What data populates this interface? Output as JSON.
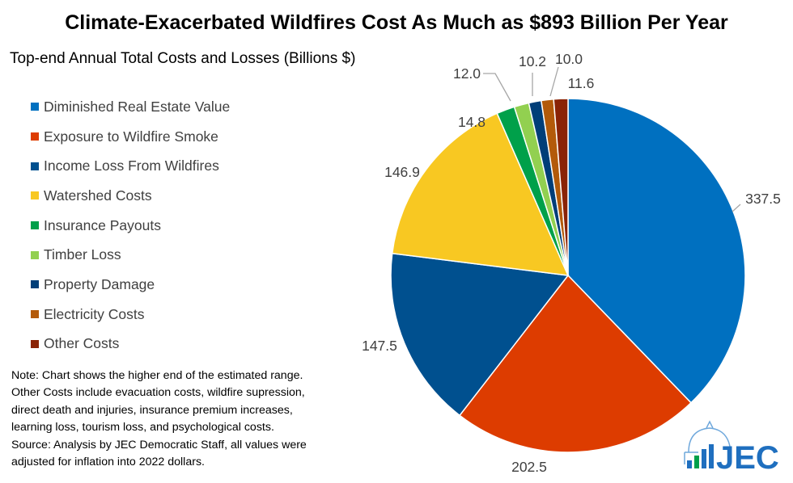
{
  "chart_data": {
    "type": "pie",
    "title": "Climate-Exacerbated Wildfires Cost As Much as $893 Billion Per Year",
    "subtitle": "Top-end Annual Total Costs and Losses (Billions $)",
    "legend_position": "left",
    "start": "12 o'clock, clockwise",
    "categories": [
      "Diminished Real Estate Value",
      "Exposure to Wildfire Smoke",
      "Income Loss From Wildfires",
      "Watershed Costs",
      "Insurance Payouts",
      "Timber Loss",
      "Property Damage",
      "Electricity Costs",
      "Other Costs"
    ],
    "values": [
      337.5,
      202.5,
      147.5,
      146.9,
      14.8,
      12.0,
      10.2,
      10.0,
      11.6
    ],
    "data_labels": [
      "337.5",
      "202.5",
      "147.5",
      "146.9",
      "14.8",
      "12.0",
      "10.2",
      "10.0",
      "11.6"
    ],
    "colors": [
      "#0070C0",
      "#DD3C00",
      "#00508F",
      "#F8C822",
      "#00A04A",
      "#92D050",
      "#003E78",
      "#B35A0A",
      "#8A2306"
    ]
  },
  "note": [
    "Note: Chart shows the higher end of the estimated range.",
    "Other Costs include evacuation costs, wildfire supression,",
    "direct death and injuries, insurance premium increases,",
    "learning loss, tourism loss, and psychological costs.",
    "Source: Analysis by JEC Democratic Staff, all values were",
    "adjusted for inflation into 2022 dollars."
  ],
  "logo": {
    "text": "JEC"
  }
}
